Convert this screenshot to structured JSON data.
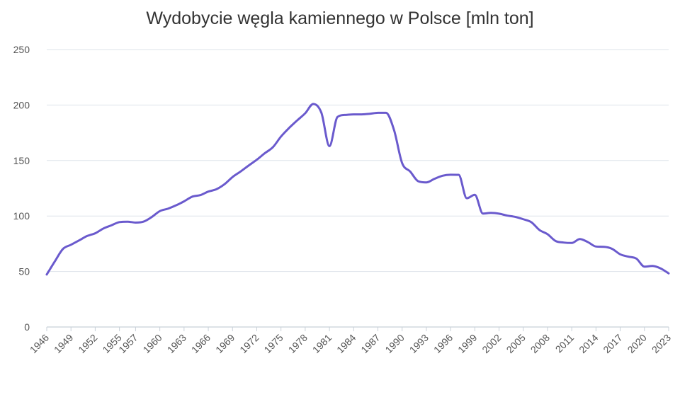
{
  "chart_data": {
    "type": "line",
    "title": "Wydobycie węgla kamiennego w Polsce [mln ton]",
    "xlabel": "",
    "ylabel": "",
    "ylim": [
      0,
      250
    ],
    "y_ticks": [
      0,
      50,
      100,
      150,
      200,
      250
    ],
    "x_range": [
      1946,
      2023
    ],
    "x_ticks": [
      1946,
      1949,
      1952,
      1955,
      1957,
      1960,
      1963,
      1966,
      1969,
      1972,
      1975,
      1978,
      1981,
      1984,
      1987,
      1990,
      1993,
      1996,
      1999,
      2002,
      2005,
      2008,
      2011,
      2014,
      2017,
      2020,
      2023
    ],
    "grid": "horizontal",
    "line_color": "#6a5acd",
    "series": [
      {
        "x": [
          1946,
          1947,
          1948,
          1949,
          1950,
          1951,
          1952,
          1953,
          1954,
          1955,
          1956,
          1957,
          1958,
          1959,
          1960,
          1961,
          1962,
          1963,
          1964,
          1965,
          1966,
          1967,
          1968,
          1969,
          1970,
          1971,
          1972,
          1973,
          1974,
          1975,
          1976,
          1977,
          1978,
          1979,
          1980,
          1981,
          1982,
          1983,
          1984,
          1985,
          1986,
          1987,
          1988,
          1989,
          1990,
          1991,
          1992,
          1993,
          1994,
          1995,
          1996,
          1997,
          1998,
          1999,
          2000,
          2001,
          2002,
          2003,
          2004,
          2005,
          2006,
          2007,
          2008,
          2009,
          2010,
          2011,
          2012,
          2013,
          2014,
          2015,
          2016,
          2017,
          2018,
          2019,
          2020,
          2021,
          2022,
          2023
        ],
        "values": [
          47.3,
          59.1,
          70.3,
          74.1,
          78.0,
          82.0,
          84.4,
          88.7,
          91.6,
          94.5,
          94.9,
          94.1,
          95.0,
          99.1,
          104.4,
          106.6,
          109.6,
          113.2,
          117.4,
          118.8,
          122.0,
          124.1,
          128.6,
          135.1,
          140.1,
          145.5,
          150.7,
          156.6,
          162.0,
          171.6,
          179.3,
          186.1,
          192.6,
          201.0,
          193.1,
          163.0,
          189.3,
          191.1,
          191.6,
          191.6,
          192.1,
          193.0,
          193.0,
          177.4,
          147.7,
          140.1,
          131.3,
          130.3,
          133.5,
          136.3,
          137.2,
          137.1,
          116.0,
          119.1,
          102.2,
          102.8,
          102.1,
          100.4,
          99.2,
          97.1,
          94.4,
          87.4,
          83.6,
          77.5,
          76.1,
          75.7,
          79.2,
          76.5,
          72.5,
          72.2,
          70.4,
          65.5,
          63.4,
          61.6,
          54.4,
          55.0,
          52.8,
          48.3
        ]
      }
    ]
  }
}
